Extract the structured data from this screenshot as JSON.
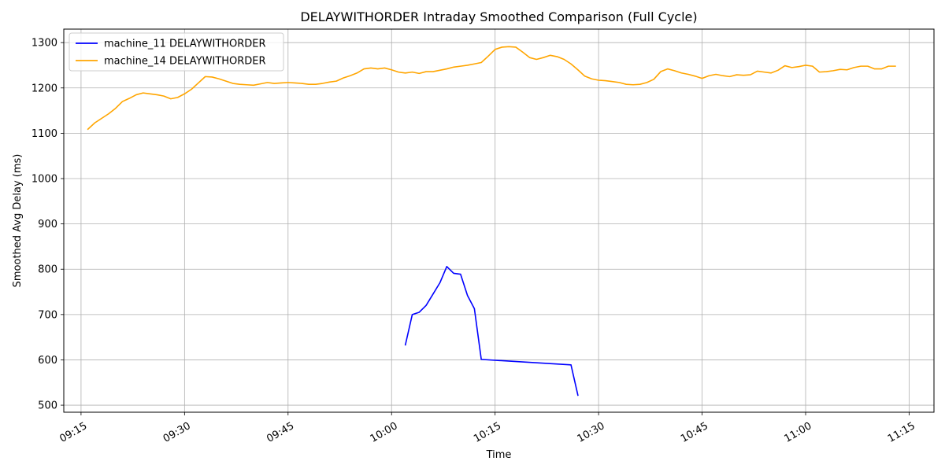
{
  "chart_data": {
    "type": "line",
    "title": "DELAYWITHORDER Intraday Smoothed Comparison (Full Cycle)",
    "xlabel": "Time",
    "ylabel": "Smoothed Avg Delay (ms)",
    "xlim": [
      "09:15",
      "11:15"
    ],
    "xtick_labels": [
      "09:15",
      "09:30",
      "09:45",
      "10:00",
      "10:15",
      "10:30",
      "10:45",
      "11:00",
      "11:15"
    ],
    "ylim": [
      500,
      1300
    ],
    "ytick_labels": [
      "500",
      "600",
      "700",
      "800",
      "900",
      "1000",
      "1100",
      "1200",
      "1300"
    ],
    "grid": true,
    "legend_position": "top-left",
    "series": [
      {
        "name": "machine_11 DELAYWITHORDER",
        "color": "#0000ff",
        "x": [
          "10:02",
          "10:03",
          "10:04",
          "10:05",
          "10:06",
          "10:07",
          "10:08",
          "10:09",
          "10:10",
          "10:11",
          "10:12",
          "10:13",
          "10:26",
          "10:27"
        ],
        "y": [
          633,
          700,
          705,
          720,
          745,
          770,
          806,
          791,
          789,
          742,
          713,
          601,
          589,
          522
        ]
      },
      {
        "name": "machine_14 DELAYWITHORDER",
        "color": "#ffa500",
        "x": [
          "09:16",
          "09:17",
          "09:18",
          "09:19",
          "09:20",
          "09:21",
          "09:22",
          "09:23",
          "09:24",
          "09:25",
          "09:26",
          "09:27",
          "09:28",
          "09:29",
          "09:30",
          "09:31",
          "09:32",
          "09:33",
          "09:34",
          "09:35",
          "09:36",
          "09:37",
          "09:38",
          "09:39",
          "09:40",
          "09:41",
          "09:42",
          "09:43",
          "09:44",
          "09:45",
          "09:46",
          "09:47",
          "09:48",
          "09:49",
          "09:50",
          "09:51",
          "09:52",
          "09:53",
          "09:54",
          "09:55",
          "09:56",
          "09:57",
          "09:58",
          "09:59",
          "10:00",
          "10:01",
          "10:02",
          "10:03",
          "10:04",
          "10:05",
          "10:06",
          "10:07",
          "10:08",
          "10:09",
          "10:10",
          "10:11",
          "10:12",
          "10:13",
          "10:14",
          "10:15",
          "10:16",
          "10:17",
          "10:18",
          "10:19",
          "10:20",
          "10:21",
          "10:22",
          "10:23",
          "10:24",
          "10:25",
          "10:26",
          "10:27",
          "10:28",
          "10:29",
          "10:30",
          "10:31",
          "10:32",
          "10:33",
          "10:34",
          "10:35",
          "10:36",
          "10:37",
          "10:38",
          "10:39",
          "10:40",
          "10:41",
          "10:42",
          "10:43",
          "10:44",
          "10:45",
          "10:46",
          "10:47",
          "10:48",
          "10:49",
          "10:50",
          "10:51",
          "10:52",
          "10:53",
          "10:54",
          "10:55",
          "10:56",
          "10:57",
          "10:58",
          "10:59",
          "11:00",
          "11:01",
          "11:02",
          "11:03",
          "11:04",
          "11:05",
          "11:06",
          "11:07",
          "11:08",
          "11:09",
          "11:10",
          "11:11",
          "11:12",
          "11:13"
        ],
        "y": [
          1109,
          1123,
          1133,
          1143,
          1155,
          1170,
          1177,
          1185,
          1189,
          1187,
          1185,
          1182,
          1176,
          1179,
          1187,
          1197,
          1211,
          1225,
          1224,
          1220,
          1215,
          1210,
          1208,
          1207,
          1206,
          1209,
          1212,
          1210,
          1211,
          1212,
          1211,
          1210,
          1208,
          1208,
          1210,
          1213,
          1215,
          1222,
          1227,
          1233,
          1242,
          1244,
          1242,
          1244,
          1240,
          1235,
          1233,
          1235,
          1232,
          1236,
          1236,
          1239,
          1242,
          1246,
          1248,
          1250,
          1253,
          1256,
          1270,
          1285,
          1290,
          1291,
          1290,
          1279,
          1267,
          1263,
          1267,
          1272,
          1269,
          1263,
          1253,
          1240,
          1226,
          1220,
          1217,
          1216,
          1214,
          1212,
          1208,
          1207,
          1208,
          1212,
          1219,
          1236,
          1242,
          1238,
          1233,
          1230,
          1226,
          1221,
          1227,
          1230,
          1227,
          1225,
          1229,
          1228,
          1229,
          1237,
          1235,
          1233,
          1239,
          1249,
          1245,
          1247,
          1250,
          1248,
          1235,
          1236,
          1238,
          1241,
          1240,
          1245,
          1248,
          1248,
          1242,
          1242,
          1248,
          1248
        ]
      }
    ]
  }
}
